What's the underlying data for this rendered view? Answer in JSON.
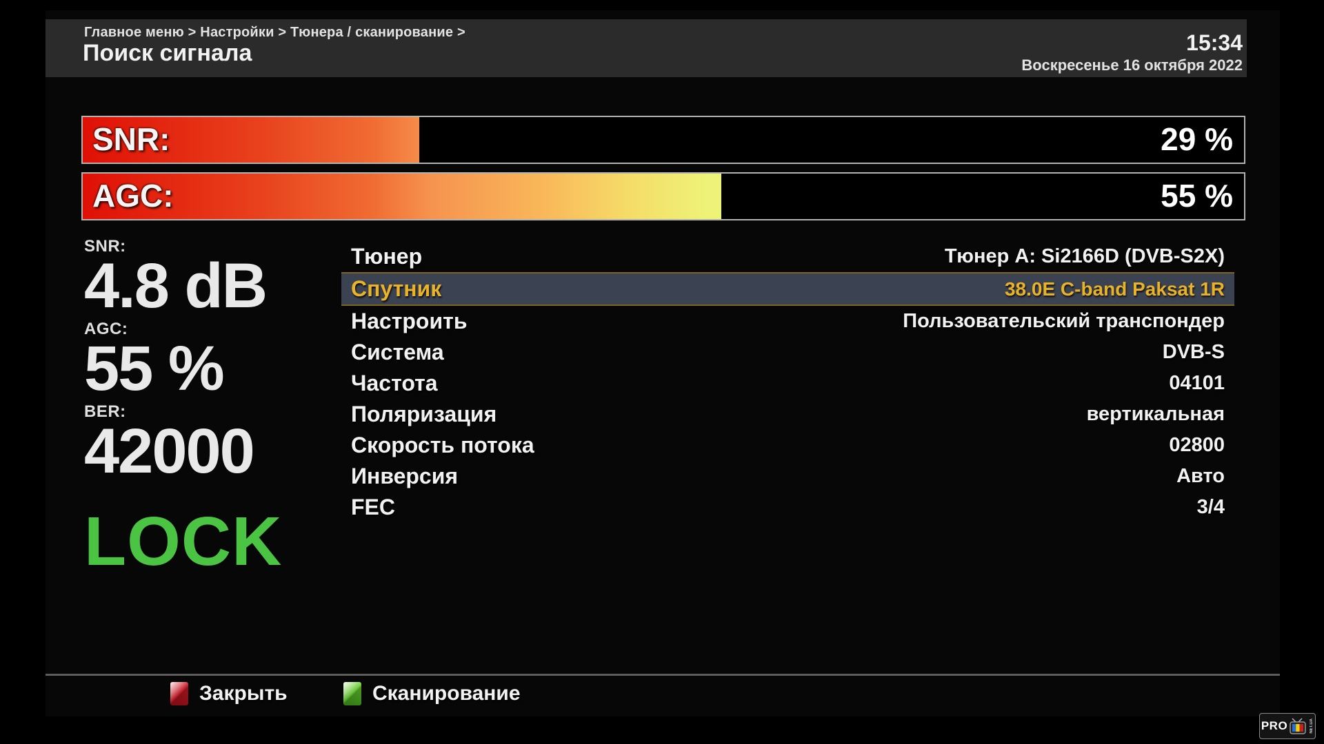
{
  "header": {
    "breadcrumb": "Главное меню > Настройки > Тюнера / сканирование >",
    "title": "Поиск сигнала",
    "time": "15:34",
    "date": "Воскресенье 16 октября 2022"
  },
  "signal_bars": [
    {
      "label": "SNR:",
      "value": "29 %",
      "percent": 29
    },
    {
      "label": "AGC:",
      "value": "55 %",
      "percent": 55
    }
  ],
  "stats": {
    "snr_label": "SNR:",
    "snr_value": "4.8 dB",
    "agc_label": "AGC:",
    "agc_value": "55 %",
    "ber_label": "BER:",
    "ber_value": "42000",
    "lock": "LOCK"
  },
  "menu": {
    "rows": [
      {
        "label": "Тюнер",
        "value": "Тюнер A: Si2166D (DVB-S2X)",
        "selected": false
      },
      {
        "label": "Спутник",
        "value": "38.0E C-band Paksat 1R",
        "selected": true
      },
      {
        "label": "Настроить",
        "value": "Пользовательский транспондер",
        "selected": false
      },
      {
        "label": "Система",
        "value": "DVB-S",
        "selected": false
      },
      {
        "label": "Частота",
        "value": "04101",
        "selected": false
      },
      {
        "label": "Поляризация",
        "value": "вертикальная",
        "selected": false
      },
      {
        "label": "Скорость потока",
        "value": "02800",
        "selected": false
      },
      {
        "label": "Инверсия",
        "value": "Авто",
        "selected": false
      },
      {
        "label": "FEC",
        "value": "3/4",
        "selected": false
      }
    ]
  },
  "footer": {
    "close_label": "Закрыть",
    "scan_label": "Сканирование"
  },
  "logo": {
    "pro": "PRO",
    "net": "NET.UA"
  },
  "colors": {
    "header_bg": "#2b2b2b",
    "selected_row_bg": "#3b4251",
    "selected_row_border": "#7f6519",
    "selected_text": "#e9b227",
    "lock_green": "#4cc443",
    "bar_gradient_start": "#e01006",
    "bar_gradient_orange": "#f6934f",
    "bar_gradient_yellow": "#e7f477",
    "red_key": "#b5121d",
    "green_key": "#53bf25"
  }
}
